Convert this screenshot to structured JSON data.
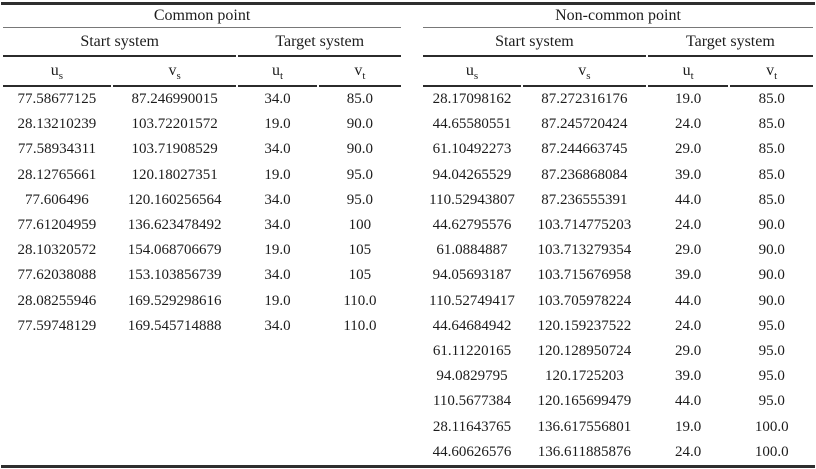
{
  "table": {
    "groups": [
      {
        "title": "Common point",
        "sections": [
          "Start system",
          "Target system"
        ],
        "columns": [
          {
            "base": "u",
            "sub": "s"
          },
          {
            "base": "v",
            "sub": "s"
          },
          {
            "base": "u",
            "sub": "t"
          },
          {
            "base": "v",
            "sub": "t"
          }
        ],
        "rows": [
          [
            "77.58677125",
            "87.246990015",
            "34.0",
            "85.0"
          ],
          [
            "28.13210239",
            "103.72201572",
            "19.0",
            "90.0"
          ],
          [
            "77.58934311",
            "103.71908529",
            "34.0",
            "90.0"
          ],
          [
            "28.12765661",
            "120.18027351",
            "19.0",
            "95.0"
          ],
          [
            "77.606496",
            "120.160256564",
            "34.0",
            "95.0"
          ],
          [
            "77.61204959",
            "136.623478492",
            "34.0",
            "100"
          ],
          [
            "28.10320572",
            "154.068706679",
            "19.0",
            "105"
          ],
          [
            "77.62038088",
            "153.103856739",
            "34.0",
            "105"
          ],
          [
            "28.08255946",
            "169.529298616",
            "19.0",
            "110.0"
          ],
          [
            "77.59748129",
            "169.545714888",
            "34.0",
            "110.0"
          ]
        ]
      },
      {
        "title": "Non-common point",
        "sections": [
          "Start system",
          "Target system"
        ],
        "columns": [
          {
            "base": "u",
            "sub": "s"
          },
          {
            "base": "v",
            "sub": "s"
          },
          {
            "base": "u",
            "sub": "t"
          },
          {
            "base": "v",
            "sub": "t"
          }
        ],
        "rows": [
          [
            "28.17098162",
            "87.272316176",
            "19.0",
            "85.0"
          ],
          [
            "44.65580551",
            "87.245720424",
            "24.0",
            "85.0"
          ],
          [
            "61.10492273",
            "87.244663745",
            "29.0",
            "85.0"
          ],
          [
            "94.04265529",
            "87.236868084",
            "39.0",
            "85.0"
          ],
          [
            "110.52943807",
            "87.236555391",
            "44.0",
            "85.0"
          ],
          [
            "44.62795576",
            "103.714775203",
            "24.0",
            "90.0"
          ],
          [
            "61.0884887",
            "103.713279354",
            "29.0",
            "90.0"
          ],
          [
            "94.05693187",
            "103.715676958",
            "39.0",
            "90.0"
          ],
          [
            "110.52749417",
            "103.705978224",
            "44.0",
            "90.0"
          ],
          [
            "44.64684942",
            "120.159237522",
            "24.0",
            "95.0"
          ],
          [
            "61.11220165",
            "120.128950724",
            "29.0",
            "95.0"
          ],
          [
            "94.0829795",
            "120.1725203",
            "39.0",
            "95.0"
          ],
          [
            "110.5677384",
            "120.165699479",
            "44.0",
            "95.0"
          ],
          [
            "28.11643765",
            "136.617556801",
            "19.0",
            "100.0"
          ],
          [
            "44.60626576",
            "136.611885876",
            "24.0",
            "100.0"
          ]
        ]
      }
    ]
  }
}
